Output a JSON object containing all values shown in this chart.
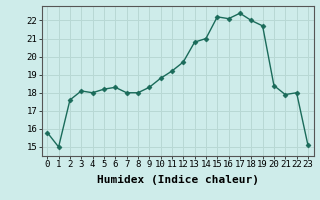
{
  "x": [
    0,
    1,
    2,
    3,
    4,
    5,
    6,
    7,
    8,
    9,
    10,
    11,
    12,
    13,
    14,
    15,
    16,
    17,
    18,
    19,
    20,
    21,
    22,
    23
  ],
  "y": [
    15.8,
    15.0,
    17.6,
    18.1,
    18.0,
    18.2,
    18.3,
    18.0,
    18.0,
    18.3,
    18.8,
    19.2,
    19.7,
    20.8,
    21.0,
    22.2,
    22.1,
    22.4,
    22.0,
    21.7,
    18.4,
    17.9,
    18.0,
    15.1
  ],
  "line_color": "#1a6b5a",
  "marker": "D",
  "marker_size": 2.5,
  "bg_color": "#ceecea",
  "grid_color": "#b8d8d4",
  "xlabel": "Humidex (Indice chaleur)",
  "xlim": [
    -0.5,
    23.5
  ],
  "ylim": [
    14.5,
    22.8
  ],
  "yticks": [
    15,
    16,
    17,
    18,
    19,
    20,
    21,
    22
  ],
  "xtick_labels": [
    "0",
    "1",
    "2",
    "3",
    "4",
    "5",
    "6",
    "7",
    "8",
    "9",
    "10",
    "11",
    "12",
    "13",
    "14",
    "15",
    "16",
    "17",
    "18",
    "19",
    "20",
    "21",
    "22",
    "23"
  ],
  "tick_fontsize": 6.5,
  "xlabel_fontsize": 8
}
